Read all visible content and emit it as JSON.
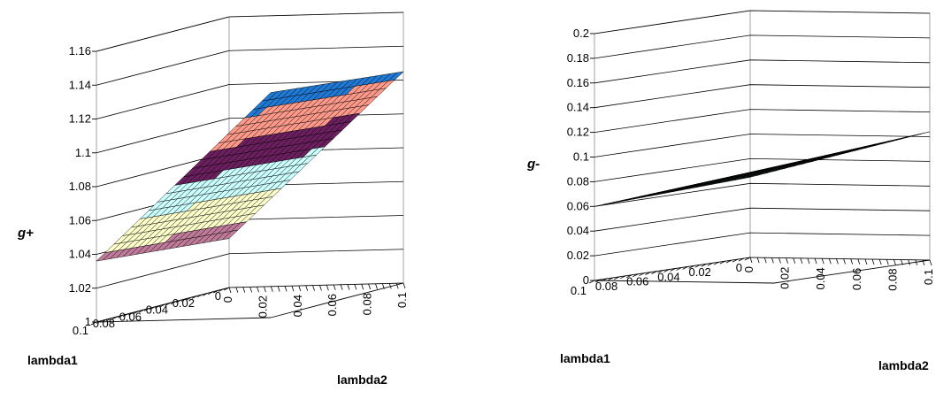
{
  "chart_data": [
    {
      "type": "surface",
      "zlabel": "g+",
      "xlabel": "lambda1",
      "ylabel": "lambda2",
      "zlim": [
        1,
        1.16
      ],
      "z_ticks": [
        "1",
        "1.02",
        "1.04",
        "1.06",
        "1.08",
        "1.1",
        "1.12",
        "1.14",
        "1.16"
      ],
      "x_ticks": [
        "0.1",
        "0.08",
        "0.06",
        "0.04",
        "0.02",
        "0"
      ],
      "y_ticks": [
        "0",
        "0.02",
        "0.04",
        "0.06",
        "0.08",
        "0.1"
      ],
      "grid_size": 20,
      "corner_values": {
        "l1_0.1_l2_0": 1.036,
        "l1_0.1_l2_0.1": 1.133,
        "l1_0_l2_0": 1.029,
        "l1_0_l2_0.1": 1.125
      },
      "band_colors": [
        "#c07a9a",
        "#ffffcc",
        "#ccffff",
        "#6b1f5e",
        "#ff9a8a",
        "#1f7ad6"
      ],
      "band_breaks": [
        1.04,
        1.06,
        1.08,
        1.1,
        1.12
      ]
    },
    {
      "type": "surface",
      "zlabel": "g-",
      "xlabel": "lambda1",
      "ylabel": "lambda2",
      "zlim": [
        0,
        0.2
      ],
      "z_ticks": [
        "0",
        "0.02",
        "0.04",
        "0.06",
        "0.08",
        "0.1",
        "0.12",
        "0.14",
        "0.16",
        "0.18",
        "0.2"
      ],
      "x_ticks": [
        "0.1",
        "0.08",
        "0.06",
        "0.04",
        "0.02",
        "0"
      ],
      "y_ticks": [
        "0",
        "0.02",
        "0.04",
        "0.06",
        "0.08",
        "0.1"
      ],
      "grid_size": 20,
      "corner_values": {
        "l1_0.1_l2_0": 0.06,
        "l1_0.1_l2_0.1": 0.094,
        "l1_0_l2_0": 0.065,
        "l1_0_l2_0.1": 0.104
      },
      "band_colors": [
        "#ccffff",
        "#6b1f5e"
      ],
      "band_breaks": [
        0.098
      ]
    }
  ]
}
